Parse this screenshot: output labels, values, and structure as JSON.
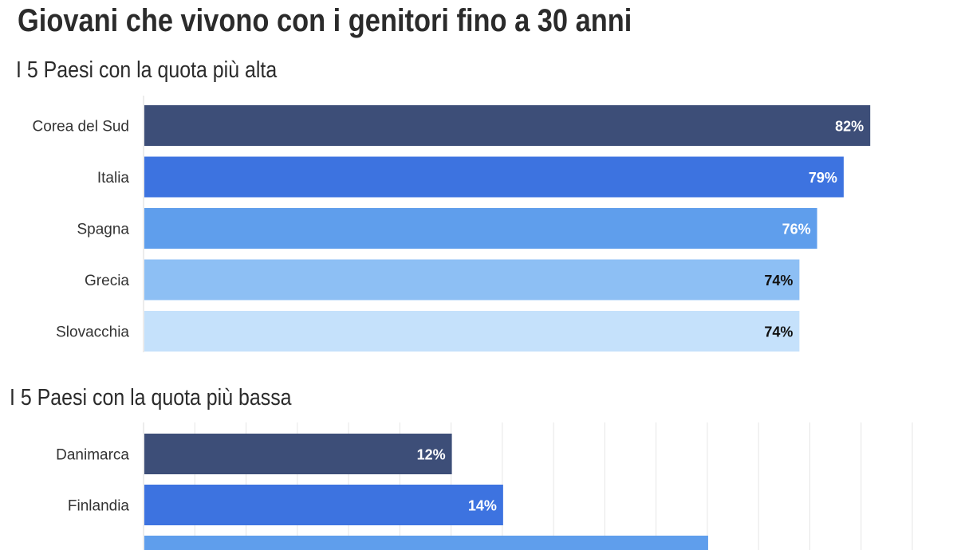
{
  "title": "Giovani che vivono con i genitori fino a 30 anni",
  "palette": [
    "#3d4e78",
    "#3d73e0",
    "#5f9eec",
    "#8dbff4",
    "#c5e1fb"
  ],
  "chart_data": [
    {
      "type": "bar",
      "orientation": "horizontal",
      "subtitle": "I 5 Paesi con la quota più alta",
      "categories": [
        "Corea del Sud",
        "Italia",
        "Spagna",
        "Grecia",
        "Slovacchia"
      ],
      "values": [
        82,
        79,
        76,
        74,
        74
      ],
      "value_labels": [
        "82%",
        "79%",
        "76%",
        "74%",
        "74%"
      ],
      "colors": [
        "#3d4e78",
        "#3d73e0",
        "#5f9eec",
        "#8dbff4",
        "#c5e1fb"
      ],
      "label_colors": [
        "#ffffff",
        "#ffffff",
        "#ffffff",
        "#111111",
        "#111111"
      ],
      "xlim": [
        0,
        100
      ],
      "grid": false
    },
    {
      "type": "bar",
      "orientation": "horizontal",
      "subtitle": "I 5 Paesi con la quota più bassa",
      "categories": [
        "Danimarca",
        "Finlandia",
        ""
      ],
      "values": [
        12,
        14,
        22
      ],
      "value_labels": [
        "12%",
        "14%",
        ""
      ],
      "colors": [
        "#3d4e78",
        "#3d73e0",
        "#5f9eec"
      ],
      "label_colors": [
        "#ffffff",
        "#ffffff",
        "#ffffff"
      ],
      "xlim": [
        0,
        30
      ],
      "grid": true
    }
  ]
}
